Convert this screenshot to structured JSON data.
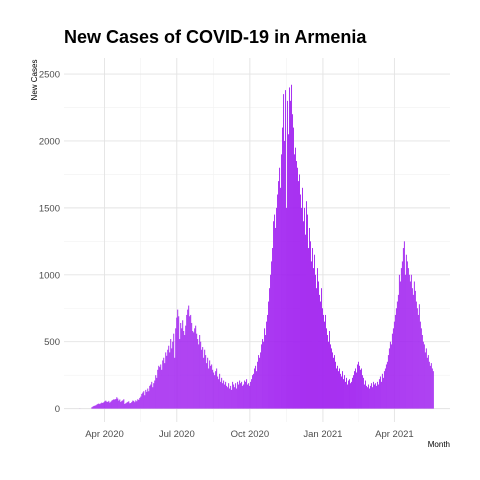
{
  "chart_data": {
    "type": "bar",
    "title": "New Cases of COVID-19 in Armenia",
    "xlabel": "Month",
    "ylabel": "New Cases",
    "x_start": "2020-03-01",
    "x_end": "2021-05-20",
    "xlim": [
      "2020-02-10",
      "2021-06-10"
    ],
    "ylim": [
      -100,
      2620
    ],
    "y_ticks": [
      0,
      500,
      1000,
      1500,
      2000,
      2500
    ],
    "x_ticks": [
      {
        "date": "2020-04-01",
        "label": "Apr 2020"
      },
      {
        "date": "2020-07-01",
        "label": "Jul 2020"
      },
      {
        "date": "2020-10-01",
        "label": "Oct 2020"
      },
      {
        "date": "2021-01-01",
        "label": "Jan 2021"
      },
      {
        "date": "2021-04-01",
        "label": "Apr 2021"
      }
    ],
    "grid": true,
    "bar_color": "#a020f0",
    "values": [
      1,
      0,
      0,
      0,
      0,
      0,
      0,
      0,
      0,
      0,
      0,
      0,
      10,
      15,
      20,
      22,
      25,
      30,
      35,
      38,
      34,
      40,
      45,
      42,
      48,
      55,
      60,
      52,
      50,
      58,
      45,
      52,
      60,
      65,
      70,
      68,
      72,
      85,
      75,
      60,
      68,
      50,
      58,
      62,
      70,
      35,
      40,
      45,
      50,
      55,
      40,
      42,
      50,
      60,
      58,
      48,
      62,
      55,
      70,
      65,
      80,
      90,
      110,
      120,
      130,
      100,
      140,
      125,
      150,
      130,
      170,
      180,
      200,
      160,
      190,
      210,
      250,
      230,
      290,
      320,
      310,
      330,
      290,
      360,
      380,
      340,
      420,
      395,
      440,
      470,
      420,
      520,
      450,
      500,
      560,
      380,
      600,
      680,
      740,
      690,
      520,
      640,
      600,
      660,
      580,
      550,
      620,
      700,
      740,
      770,
      690,
      700,
      640,
      580,
      570,
      600,
      620,
      560,
      520,
      480,
      550,
      500,
      440,
      460,
      380,
      440,
      400,
      340,
      380,
      300,
      360,
      320,
      330,
      290,
      270,
      250,
      280,
      300,
      240,
      220,
      260,
      200,
      230,
      190,
      210,
      180,
      200,
      170,
      160,
      190,
      150,
      170,
      140,
      200,
      180,
      160,
      190,
      150,
      200,
      180,
      210,
      190,
      200,
      170,
      180,
      210,
      200,
      220,
      180,
      190,
      170,
      200,
      220,
      250,
      260,
      300,
      320,
      280,
      350,
      400,
      380,
      420,
      480,
      520,
      500,
      600,
      550,
      650,
      700,
      800,
      900,
      1000,
      1100,
      1200,
      1400,
      1450,
      1350,
      1500,
      1600,
      1700,
      1800,
      1650,
      1900,
      2100,
      2350,
      2000,
      2380,
      1500,
      2300,
      2050,
      2400,
      2300,
      2420,
      2200,
      2100,
      1900,
      1950,
      1850,
      1800,
      1700,
      1750,
      1600,
      1500,
      1650,
      1400,
      1500,
      1300,
      1550,
      1450,
      1200,
      1350,
      1250,
      1100,
      1200,
      1050,
      1150,
      1000,
      900,
      1050,
      950,
      850,
      800,
      900,
      750,
      700,
      650,
      700,
      600,
      550,
      500,
      580,
      480,
      450,
      420,
      380,
      400,
      350,
      300,
      320,
      280,
      300,
      260,
      240,
      280,
      220,
      250,
      200,
      230,
      180,
      210,
      220,
      190,
      200,
      230,
      250,
      280,
      300,
      270,
      330,
      350,
      320,
      290,
      300,
      250,
      230,
      180,
      210,
      170,
      160,
      180,
      150,
      170,
      190,
      160,
      200,
      180,
      190,
      170,
      200,
      180,
      220,
      240,
      200,
      260,
      230,
      280,
      300,
      330,
      350,
      400,
      450,
      500,
      480,
      560,
      600,
      650,
      700,
      750,
      800,
      850,
      1000,
      950,
      1050,
      1100,
      1200,
      1250,
      1000,
      1150,
      1100,
      1050,
      1000,
      950,
      1000,
      900,
      850,
      950,
      880,
      800,
      750,
      700,
      780,
      650,
      600,
      550,
      500,
      480,
      420,
      450,
      380,
      400,
      350,
      320,
      340,
      300,
      280
    ]
  }
}
